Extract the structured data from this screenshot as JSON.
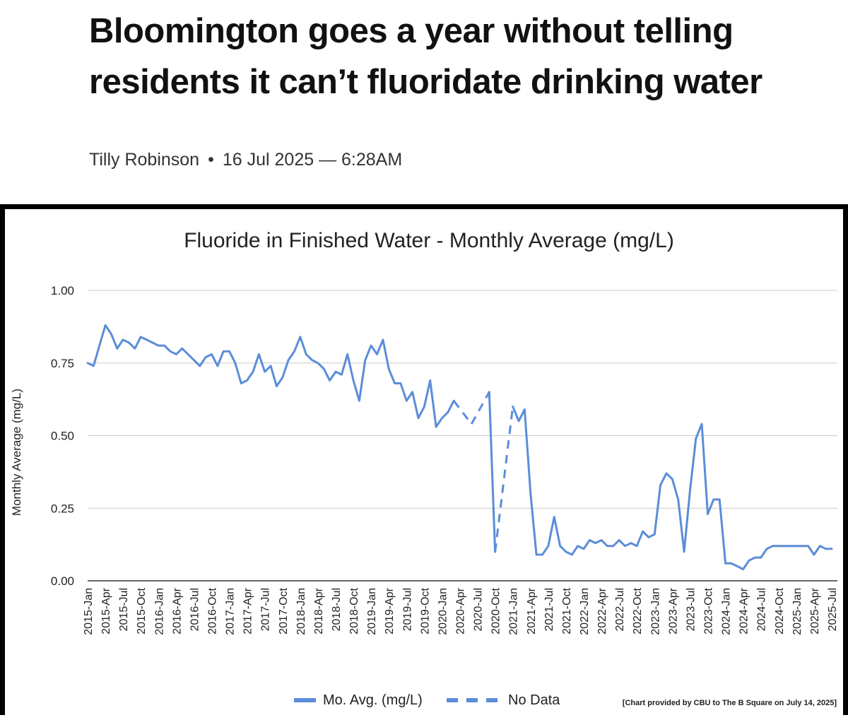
{
  "article": {
    "headline": "Bloomington goes a year without telling residents it can’t fluoridate drinking water",
    "author": "Tilly Robinson",
    "separator": "•",
    "date": "16 Jul 2025 — 6:28AM"
  },
  "chart_data": {
    "type": "line",
    "title": "Fluoride in Finished Water - Monthly Average (mg/L)",
    "ylabel": "Monthly Average (mg/L)",
    "xlabel": "",
    "ylim": [
      0,
      1
    ],
    "yticks": [
      "1.00",
      "0.75",
      "0.50",
      "0.25",
      "0.00"
    ],
    "grid": true,
    "legend_position": "bottom",
    "series_color": "#5b8dd9",
    "x_tick_labels": [
      "2015-Jan",
      "2015-Apr",
      "2015-Jul",
      "2015-Oct",
      "2016-Jan",
      "2016-Apr",
      "2016-Jul",
      "2016-Oct",
      "2017-Jan",
      "2017-Apr",
      "2017-Jul",
      "2017-Oct",
      "2018-Jan",
      "2018-Apr",
      "2018-Jul",
      "2018-Oct",
      "2019-Jan",
      "2019-Apr",
      "2019-Jul",
      "2019-Oct",
      "2020-Jan",
      "2020-Apr",
      "2020-Jul",
      "2020-Oct",
      "2021-Jan",
      "2021-Apr",
      "2021-Jul",
      "2021-Oct",
      "2022-Jan",
      "2022-Apr",
      "2022-Jul",
      "2022-Oct",
      "2023-Jan",
      "2023-Apr",
      "2023-Jul",
      "2023-Oct",
      "2024-Jan",
      "2024-Apr",
      "2024-Jul",
      "2024-Oct",
      "2025-Jan",
      "2025-Apr",
      "2025-Jul"
    ],
    "series": [
      {
        "name": "Mo. Avg. (mg/L)",
        "style": "solid",
        "x_start": "2015-Jan",
        "values": [
          0.75,
          0.74,
          0.81,
          0.88,
          0.85,
          0.8,
          0.83,
          0.82,
          0.8,
          0.84,
          0.83,
          0.82,
          0.81,
          0.81,
          0.79,
          0.78,
          0.8,
          0.78,
          0.76,
          0.74,
          0.77,
          0.78,
          0.74,
          0.79,
          0.79,
          0.75,
          0.68,
          0.69,
          0.72,
          0.78,
          0.72,
          0.74,
          0.67,
          0.7,
          0.76,
          0.79,
          0.84,
          0.78,
          0.76,
          0.75,
          0.73,
          0.69,
          0.72,
          0.71,
          0.78,
          0.69,
          0.62,
          0.76,
          0.81,
          0.78,
          0.83,
          0.73,
          0.68,
          0.68,
          0.62,
          0.65,
          0.56,
          0.6,
          0.69,
          0.53,
          0.56,
          0.58,
          0.62,
          null,
          null,
          null,
          null,
          null,
          0.65,
          0.1,
          null,
          null,
          0.6,
          0.55,
          0.59,
          0.3,
          0.09,
          0.09,
          0.12,
          0.22,
          0.12,
          0.1,
          0.09,
          0.12,
          0.11,
          0.14,
          0.13,
          0.14,
          0.12,
          0.12,
          0.14,
          0.12,
          0.13,
          0.12,
          0.17,
          0.15,
          0.16,
          0.33,
          0.37,
          0.35,
          0.28,
          0.1,
          0.31,
          0.49,
          0.54,
          0.23,
          0.28,
          0.28,
          0.06,
          0.06,
          0.05,
          0.04,
          0.07,
          0.08,
          0.08,
          0.11,
          0.12,
          0.12,
          0.12,
          0.12,
          0.12,
          0.12,
          0.12,
          0.09,
          0.12,
          0.11,
          0.11
        ]
      },
      {
        "name": "No Data",
        "style": "dashed",
        "segments": [
          {
            "x": [
              "2020-Mar",
              "2020-Jun"
            ],
            "y": [
              0.62,
              0.54
            ]
          },
          {
            "x": [
              "2020-Jun",
              "2020-Sep"
            ],
            "y": [
              0.54,
              0.65
            ]
          },
          {
            "x": [
              "2020-Oct",
              "2021-Jan"
            ],
            "y": [
              0.1,
              0.6
            ]
          }
        ]
      }
    ],
    "source_note": "[Chart provided by CBU to The B Square on July 14, 2025]"
  }
}
